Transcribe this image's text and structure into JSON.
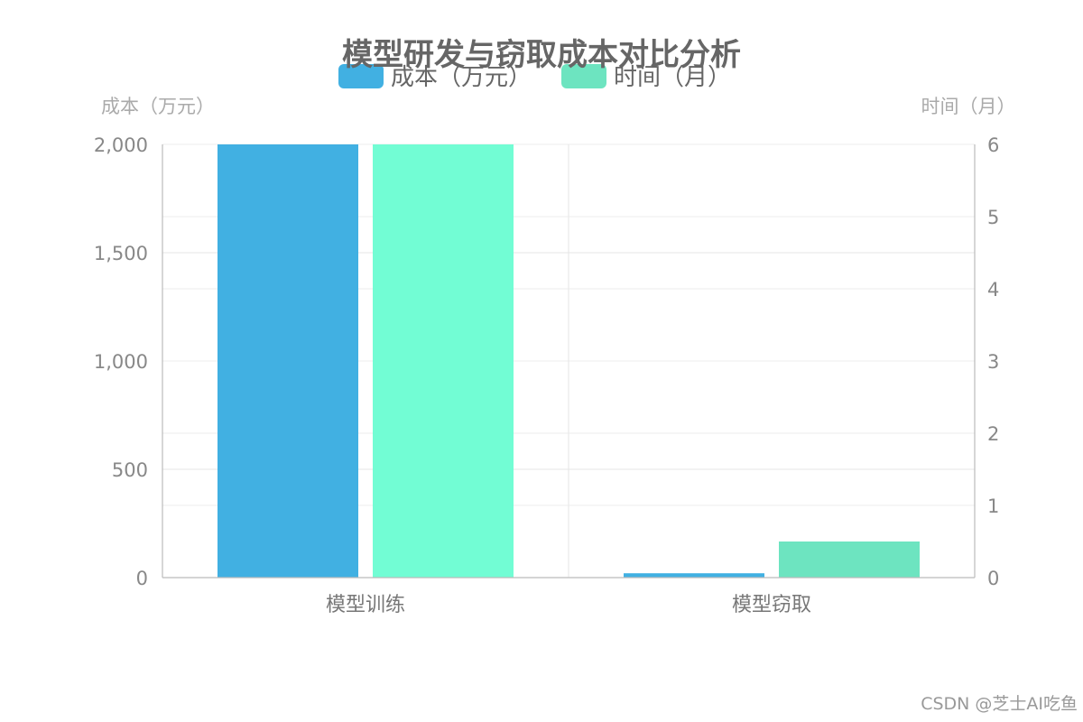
{
  "chart_data": {
    "type": "bar",
    "title": "模型研发与窃取成本对比分析",
    "categories": [
      "模型训练",
      "模型窃取"
    ],
    "series": [
      {
        "name": "成本（万元）",
        "values": [
          2000,
          20
        ],
        "axis": "left",
        "color": "#41b0e2"
      },
      {
        "name": "时间（月）",
        "values": [
          6,
          0.5
        ],
        "axis": "right",
        "color": "#72fdd4",
        "colors": [
          "#72fdd4",
          "#6de4c0"
        ]
      }
    ],
    "y_left": {
      "label": "成本（万元）",
      "min": 0,
      "max": 2000,
      "ticks": [
        0,
        500,
        1000,
        1500,
        2000
      ],
      "tick_labels": [
        "0",
        "500",
        "1,000",
        "1,500",
        "2,000"
      ]
    },
    "y_right": {
      "label": "时间（月）",
      "min": 0,
      "max": 6,
      "ticks": [
        0,
        1,
        2,
        3,
        4,
        5,
        6
      ],
      "tick_labels": [
        "0",
        "1",
        "2",
        "3",
        "4",
        "5",
        "6"
      ]
    },
    "legend_position": "top-center",
    "grid": true
  },
  "watermark": "CSDN @芝士AI吃鱼"
}
